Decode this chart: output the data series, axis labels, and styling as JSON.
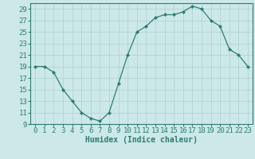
{
  "x": [
    0,
    1,
    2,
    3,
    4,
    5,
    6,
    7,
    8,
    9,
    10,
    11,
    12,
    13,
    14,
    15,
    16,
    17,
    18,
    19,
    20,
    21,
    22,
    23
  ],
  "y": [
    19,
    19,
    18,
    15,
    13,
    11,
    10,
    9.5,
    11,
    16,
    21,
    25,
    26,
    27.5,
    28,
    28,
    28.5,
    29.5,
    29,
    27,
    26,
    22,
    21,
    19
  ],
  "xlabel": "Humidex (Indice chaleur)",
  "xlim": [
    -0.5,
    23.5
  ],
  "ylim": [
    9,
    30
  ],
  "yticks": [
    9,
    11,
    13,
    15,
    17,
    19,
    21,
    23,
    25,
    27,
    29
  ],
  "xticks": [
    0,
    1,
    2,
    3,
    4,
    5,
    6,
    7,
    8,
    9,
    10,
    11,
    12,
    13,
    14,
    15,
    16,
    17,
    18,
    19,
    20,
    21,
    22,
    23
  ],
  "line_color": "#2e7d6e",
  "marker": "D",
  "marker_size": 2.0,
  "bg_color": "#cce8e8",
  "grid_color": "#b0d0d0",
  "xlabel_fontsize": 7,
  "tick_fontsize": 6.5,
  "linewidth": 0.9
}
